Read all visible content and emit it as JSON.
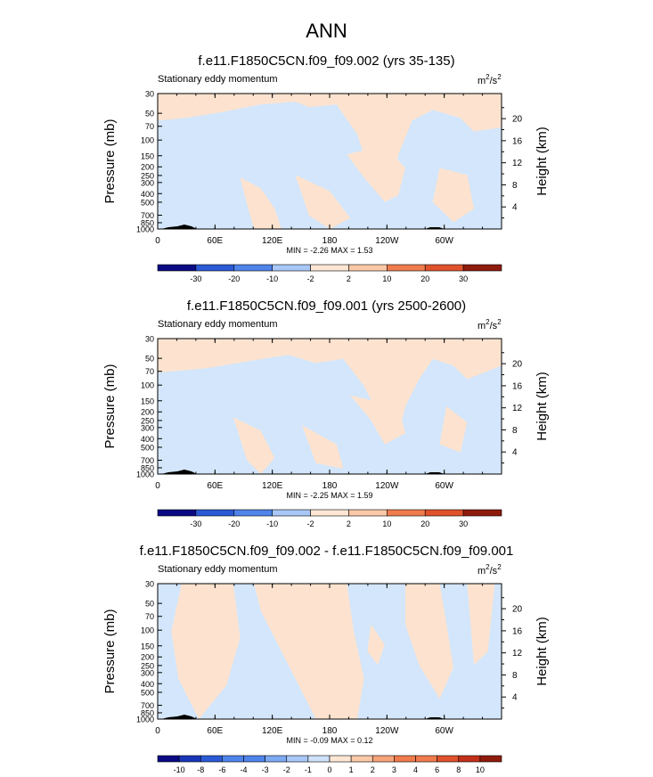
{
  "page": {
    "title": "ANN"
  },
  "colors": {
    "light_blue": "#d3e6fb",
    "light_peach": "#fde3cf",
    "topography": "#000000",
    "bar1": [
      "#0a0a84",
      "#1a36b8",
      "#2c5ad6",
      "#4f84ea",
      "#7eaaf4",
      "#a9c8f7",
      "#cfe1fb",
      "#fde6d4",
      "#fbc9a8",
      "#f7a47b",
      "#f07c4d",
      "#e0522c",
      "#c1301a",
      "#8f1b0d"
    ],
    "bar3": [
      "#0a0a84",
      "#1a36b8",
      "#2c5ad6",
      "#4f84ea",
      "#7eaaf4",
      "#a9c8f7",
      "#cfe1fb",
      "#fde6d4",
      "#fbc9a8",
      "#f7a47b",
      "#f07c4d",
      "#e0522c",
      "#c1301a",
      "#8f1b0d"
    ]
  },
  "chart_data": [
    {
      "type": "heatmap",
      "title": "f.e11.F1850C5CN.f09_f09.002 (yrs 35-135)",
      "subtitle_left": "Stationary eddy momentum",
      "units_base": "m",
      "units_sup1": "2",
      "units_mid": "/s",
      "units_sup2": "2",
      "ylabel_left": "Pressure (mb)",
      "ylabel_right": "Height (km)",
      "pressure_ticks": [
        "30",
        "50",
        "70",
        "100",
        "150",
        "200",
        "250",
        "300",
        "400",
        "500",
        "700",
        "850",
        "1000"
      ],
      "height_ticks": [
        "4",
        "8",
        "12",
        "16",
        "20"
      ],
      "x_ticks": [
        "0",
        "60E",
        "120E",
        "180",
        "120W",
        "60W"
      ],
      "stats": "MIN =  -2.26  MAX =   1.53",
      "colorbar_labels": [
        "-30",
        "-20",
        "-10",
        "-2",
        "2",
        "10",
        "20",
        "30"
      ]
    },
    {
      "type": "heatmap",
      "title": "f.e11.F1850C5CN.f09_f09.001 (yrs 2500-2600)",
      "subtitle_left": "Stationary eddy momentum",
      "units_base": "m",
      "units_sup1": "2",
      "units_mid": "/s",
      "units_sup2": "2",
      "ylabel_left": "Pressure (mb)",
      "ylabel_right": "Height (km)",
      "pressure_ticks": [
        "30",
        "50",
        "70",
        "100",
        "150",
        "200",
        "250",
        "300",
        "400",
        "500",
        "700",
        "850",
        "1000"
      ],
      "height_ticks": [
        "4",
        "8",
        "12",
        "16",
        "20"
      ],
      "x_ticks": [
        "0",
        "60E",
        "120E",
        "180",
        "120W",
        "60W"
      ],
      "stats": "MIN =  -2.25  MAX =   1.59",
      "colorbar_labels": [
        "-30",
        "-20",
        "-10",
        "-2",
        "2",
        "10",
        "20",
        "30"
      ]
    },
    {
      "type": "heatmap",
      "title": "f.e11.F1850C5CN.f09_f09.002 - f.e11.F1850C5CN.f09_f09.001",
      "subtitle_left": "Stationary eddy momentum",
      "units_base": "m",
      "units_sup1": "2",
      "units_mid": "/s",
      "units_sup2": "2",
      "ylabel_left": "Pressure (mb)",
      "ylabel_right": "Height (km)",
      "pressure_ticks": [
        "30",
        "50",
        "70",
        "100",
        "150",
        "200",
        "250",
        "300",
        "400",
        "500",
        "700",
        "850",
        "1000"
      ],
      "height_ticks": [
        "4",
        "8",
        "12",
        "16",
        "20"
      ],
      "x_ticks": [
        "0",
        "60E",
        "120E",
        "180",
        "120W",
        "60W"
      ],
      "stats": "MIN =  -0.09  MAX =   0.12",
      "colorbar_labels": [
        "-10",
        "-8",
        "-6",
        "-4",
        "-3",
        "-2",
        "-1",
        "0",
        "1",
        "2",
        "3",
        "4",
        "6",
        "8",
        "10"
      ]
    }
  ]
}
